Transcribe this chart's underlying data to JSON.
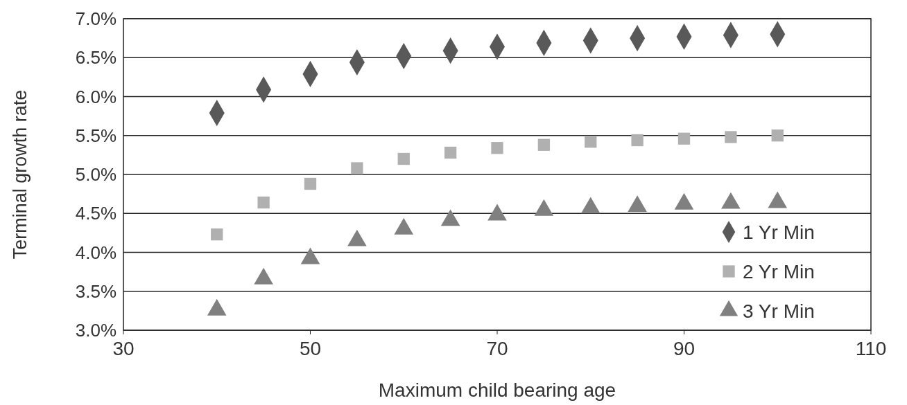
{
  "chart_data": {
    "type": "scatter",
    "xlabel": "Maximum child bearing age",
    "ylabel": "Terminal growth rate",
    "xlim": [
      30,
      110
    ],
    "xticks": [
      30,
      50,
      70,
      90,
      110
    ],
    "ylim": [
      3.0,
      7.0
    ],
    "yticks": [
      {
        "value": 3.0,
        "label": "3.0%"
      },
      {
        "value": 3.5,
        "label": "3.5%"
      },
      {
        "value": 4.0,
        "label": "4.0%"
      },
      {
        "value": 4.5,
        "label": "4.5%"
      },
      {
        "value": 5.0,
        "label": "5.0%"
      },
      {
        "value": 5.5,
        "label": "5.5%"
      },
      {
        "value": 6.0,
        "label": "6.0%"
      },
      {
        "value": 6.5,
        "label": "6.5%"
      },
      {
        "value": 7.0,
        "label": "7.0%"
      }
    ],
    "grid": "y",
    "legend": "bottom right",
    "x": [
      40,
      45,
      50,
      55,
      60,
      65,
      70,
      75,
      80,
      85,
      90,
      95,
      100
    ],
    "series": [
      {
        "name": "1 Yr Min",
        "color": "#595959",
        "marker": "diamond",
        "values": [
          5.79,
          6.09,
          6.29,
          6.44,
          6.52,
          6.59,
          6.64,
          6.69,
          6.72,
          6.75,
          6.77,
          6.79,
          6.8
        ]
      },
      {
        "name": "2 Yr Min",
        "color": "#b0b0b0",
        "marker": "square",
        "values": [
          4.23,
          4.64,
          4.88,
          5.08,
          5.2,
          5.28,
          5.34,
          5.38,
          5.42,
          5.44,
          5.46,
          5.48,
          5.5
        ]
      },
      {
        "name": "3 Yr Min",
        "color": "#808080",
        "marker": "triangle",
        "values": [
          3.26,
          3.66,
          3.92,
          4.15,
          4.3,
          4.41,
          4.48,
          4.54,
          4.57,
          4.59,
          4.62,
          4.63,
          4.64
        ]
      }
    ]
  }
}
